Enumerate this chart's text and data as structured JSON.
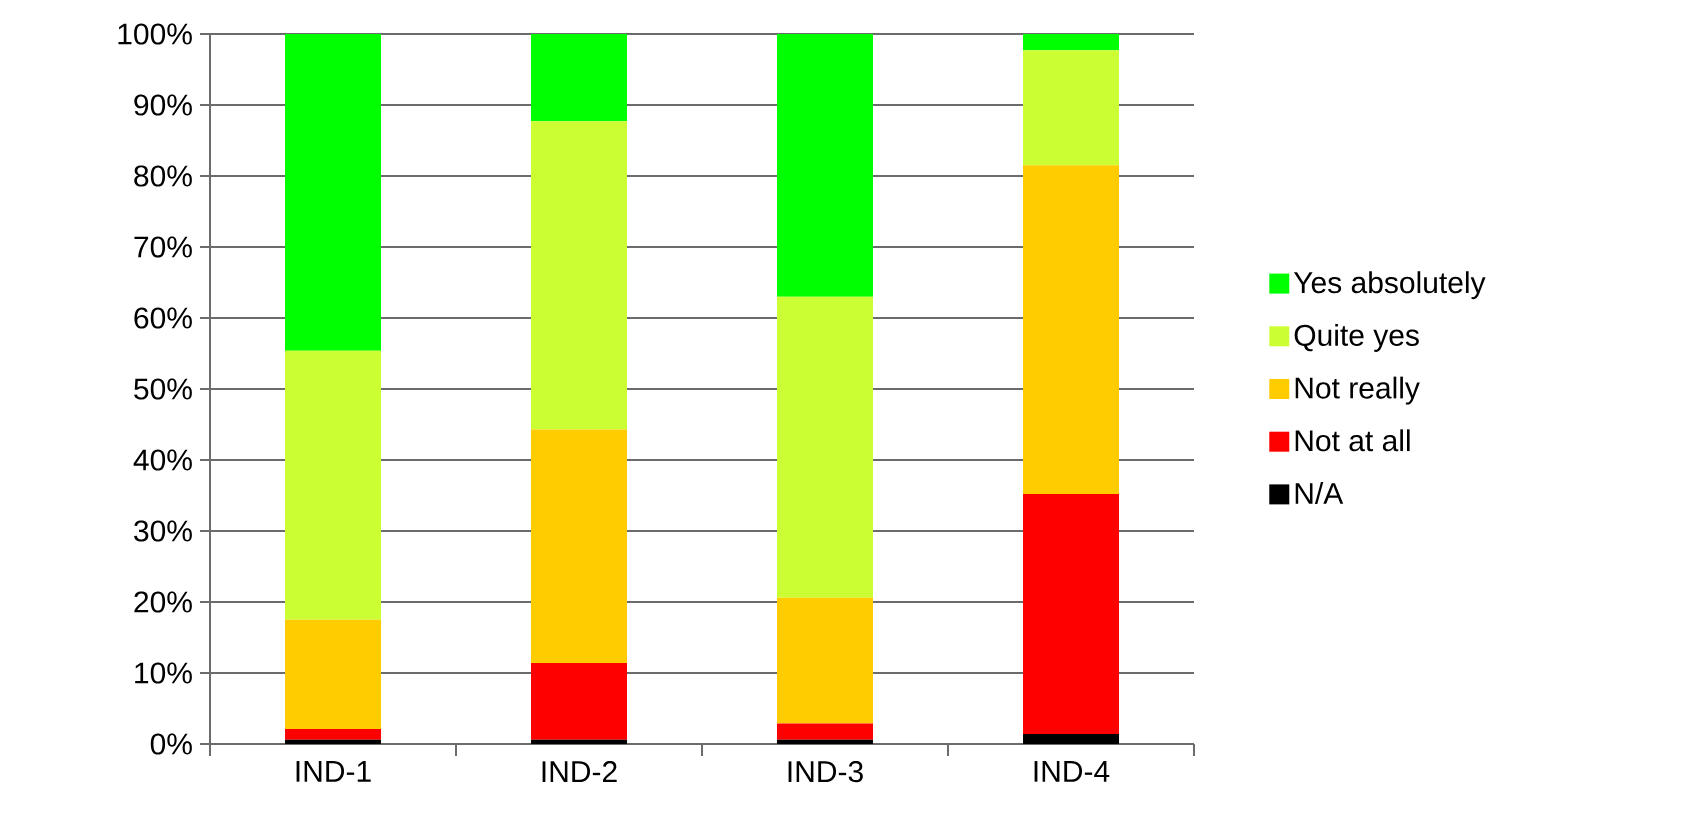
{
  "chart_data": {
    "type": "bar",
    "stacked": true,
    "categories": [
      "IND-1",
      "IND-2",
      "IND-3",
      "IND-4"
    ],
    "series": [
      {
        "name": "N/A",
        "color": "#000000",
        "values": [
          0.6,
          0.6,
          0.6,
          1.4
        ]
      },
      {
        "name": "Not at all",
        "color": "#ff0000",
        "values": [
          1.5,
          10.8,
          2.3,
          33.8
        ]
      },
      {
        "name": "Not really",
        "color": "#ffcc00",
        "values": [
          15.4,
          32.9,
          17.7,
          46.3
        ]
      },
      {
        "name": "Quite yes",
        "color": "#ccff33",
        "values": [
          37.9,
          43.4,
          42.4,
          16.2
        ]
      },
      {
        "name": "Yes absolutely",
        "color": "#00ff00",
        "values": [
          44.6,
          12.3,
          37.0,
          2.3
        ]
      }
    ],
    "ylim": [
      0,
      100
    ],
    "yticks": [
      {
        "value": 0,
        "label": "0%"
      },
      {
        "value": 10,
        "label": "10%"
      },
      {
        "value": 20,
        "label": "20%"
      },
      {
        "value": 30,
        "label": "30%"
      },
      {
        "value": 40,
        "label": "40%"
      },
      {
        "value": 50,
        "label": "50%"
      },
      {
        "value": 60,
        "label": "60%"
      },
      {
        "value": 70,
        "label": "70%"
      },
      {
        "value": 80,
        "label": "80%"
      },
      {
        "value": 90,
        "label": "90%"
      },
      {
        "value": 100,
        "label": "100%"
      }
    ],
    "grid": "y",
    "legend": "right"
  }
}
